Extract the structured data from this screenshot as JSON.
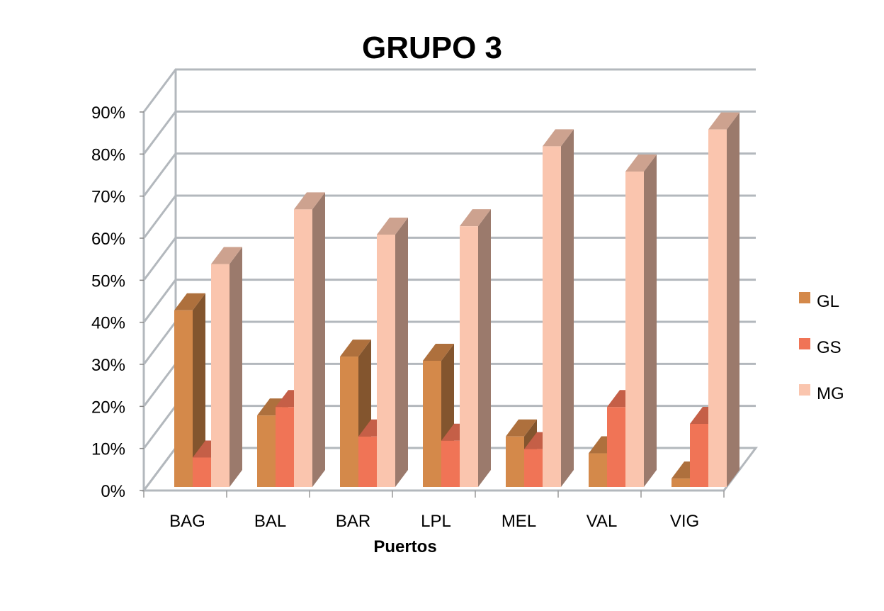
{
  "chart_data": {
    "type": "bar",
    "title": "GRUPO 3",
    "xlabel": "Puertos",
    "ylabel": "",
    "ylim": [
      0,
      90
    ],
    "y_ticks": [
      "0%",
      "10%",
      "20%",
      "30%",
      "40%",
      "50%",
      "60%",
      "70%",
      "80%",
      "90%"
    ],
    "y_unit": "%",
    "grid": true,
    "three_d": true,
    "legend_position": "right",
    "categories": [
      "BAG",
      "BAL",
      "BAR",
      "LPL",
      "MEL",
      "VAL",
      "VIG"
    ],
    "series": [
      {
        "name": "GL",
        "color": "#d4894a",
        "values": [
          42,
          17,
          31,
          30,
          12,
          8,
          2
        ]
      },
      {
        "name": "GS",
        "color": "#f07456",
        "values": [
          7,
          19,
          12,
          11,
          9,
          19,
          15
        ]
      },
      {
        "name": "MG",
        "color": "#fac5ae",
        "values": [
          53,
          66,
          60,
          62,
          81,
          75,
          85
        ]
      }
    ]
  }
}
